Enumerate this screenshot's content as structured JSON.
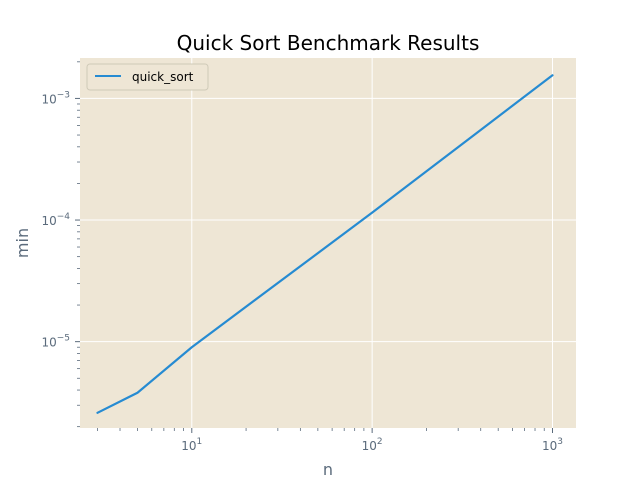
{
  "chart_data": {
    "type": "line",
    "title": "Quick Sort Benchmark Results",
    "xlabel": "n",
    "ylabel": "min",
    "xscale": "log",
    "yscale": "log",
    "xlim": [
      2.4,
      1350
    ],
    "ylim": [
      1.95e-06,
      0.00215
    ],
    "x_ticks": [
      {
        "base": "10",
        "exp": "1",
        "value": 10
      },
      {
        "base": "10",
        "exp": "2",
        "value": 100
      },
      {
        "base": "10",
        "exp": "3",
        "value": 1000
      }
    ],
    "y_ticks": [
      {
        "base": "10",
        "exp": "−5",
        "value": 1e-05
      },
      {
        "base": "10",
        "exp": "−4",
        "value": 0.0001
      },
      {
        "base": "10",
        "exp": "−3",
        "value": 0.001
      }
    ],
    "grid": true,
    "legend_position": "top-left",
    "background_color": "#eee6d5",
    "grid_color": "#ffffff",
    "series": [
      {
        "name": "quick_sort",
        "color": "#268bd2",
        "x": [
          3,
          5,
          10,
          100,
          1000
        ],
        "y": [
          2.6e-06,
          3.8e-06,
          9e-06,
          0.000115,
          0.00155
        ]
      }
    ]
  }
}
